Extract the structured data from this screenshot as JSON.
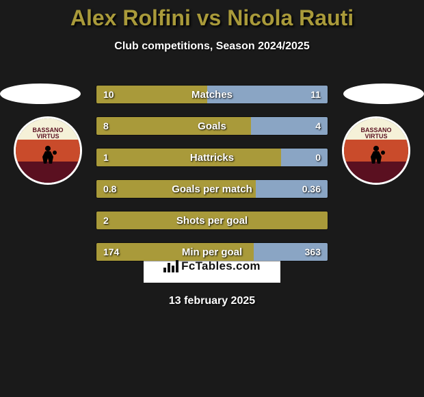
{
  "title_text": "Alex Rolfini vs Nicola Rauti",
  "title_color": "#a99a3a",
  "subtitle": "Club competitions, Season 2024/2025",
  "date": "13 february 2025",
  "ellipse_color": "#ffffff",
  "bar_colors": {
    "left": "#a99a3a",
    "right": "#8aa5c4"
  },
  "badge_colors": {
    "top": "#f5f1d8",
    "mid": "#c94b2b",
    "bot": "#5a1020",
    "text": "#5a1020",
    "label_top": "BASSANO",
    "label_bot": "VIRTUS"
  },
  "logo_text": "FcTables.com",
  "bars": [
    {
      "label": "Matches",
      "left_val": "10",
      "right_val": "11",
      "left_pct": 48,
      "right_pct": 52
    },
    {
      "label": "Goals",
      "left_val": "8",
      "right_val": "4",
      "left_pct": 67,
      "right_pct": 33
    },
    {
      "label": "Hattricks",
      "left_val": "1",
      "right_val": "0",
      "left_pct": 80,
      "right_pct": 20
    },
    {
      "label": "Goals per match",
      "left_val": "0.8",
      "right_val": "0.36",
      "left_pct": 69,
      "right_pct": 31
    },
    {
      "label": "Shots per goal",
      "left_val": "2",
      "right_val": "",
      "left_pct": 100,
      "right_pct": 0
    },
    {
      "label": "Min per goal",
      "left_val": "174",
      "right_val": "363",
      "left_pct": 68,
      "right_pct": 32,
      "invert": true
    }
  ]
}
